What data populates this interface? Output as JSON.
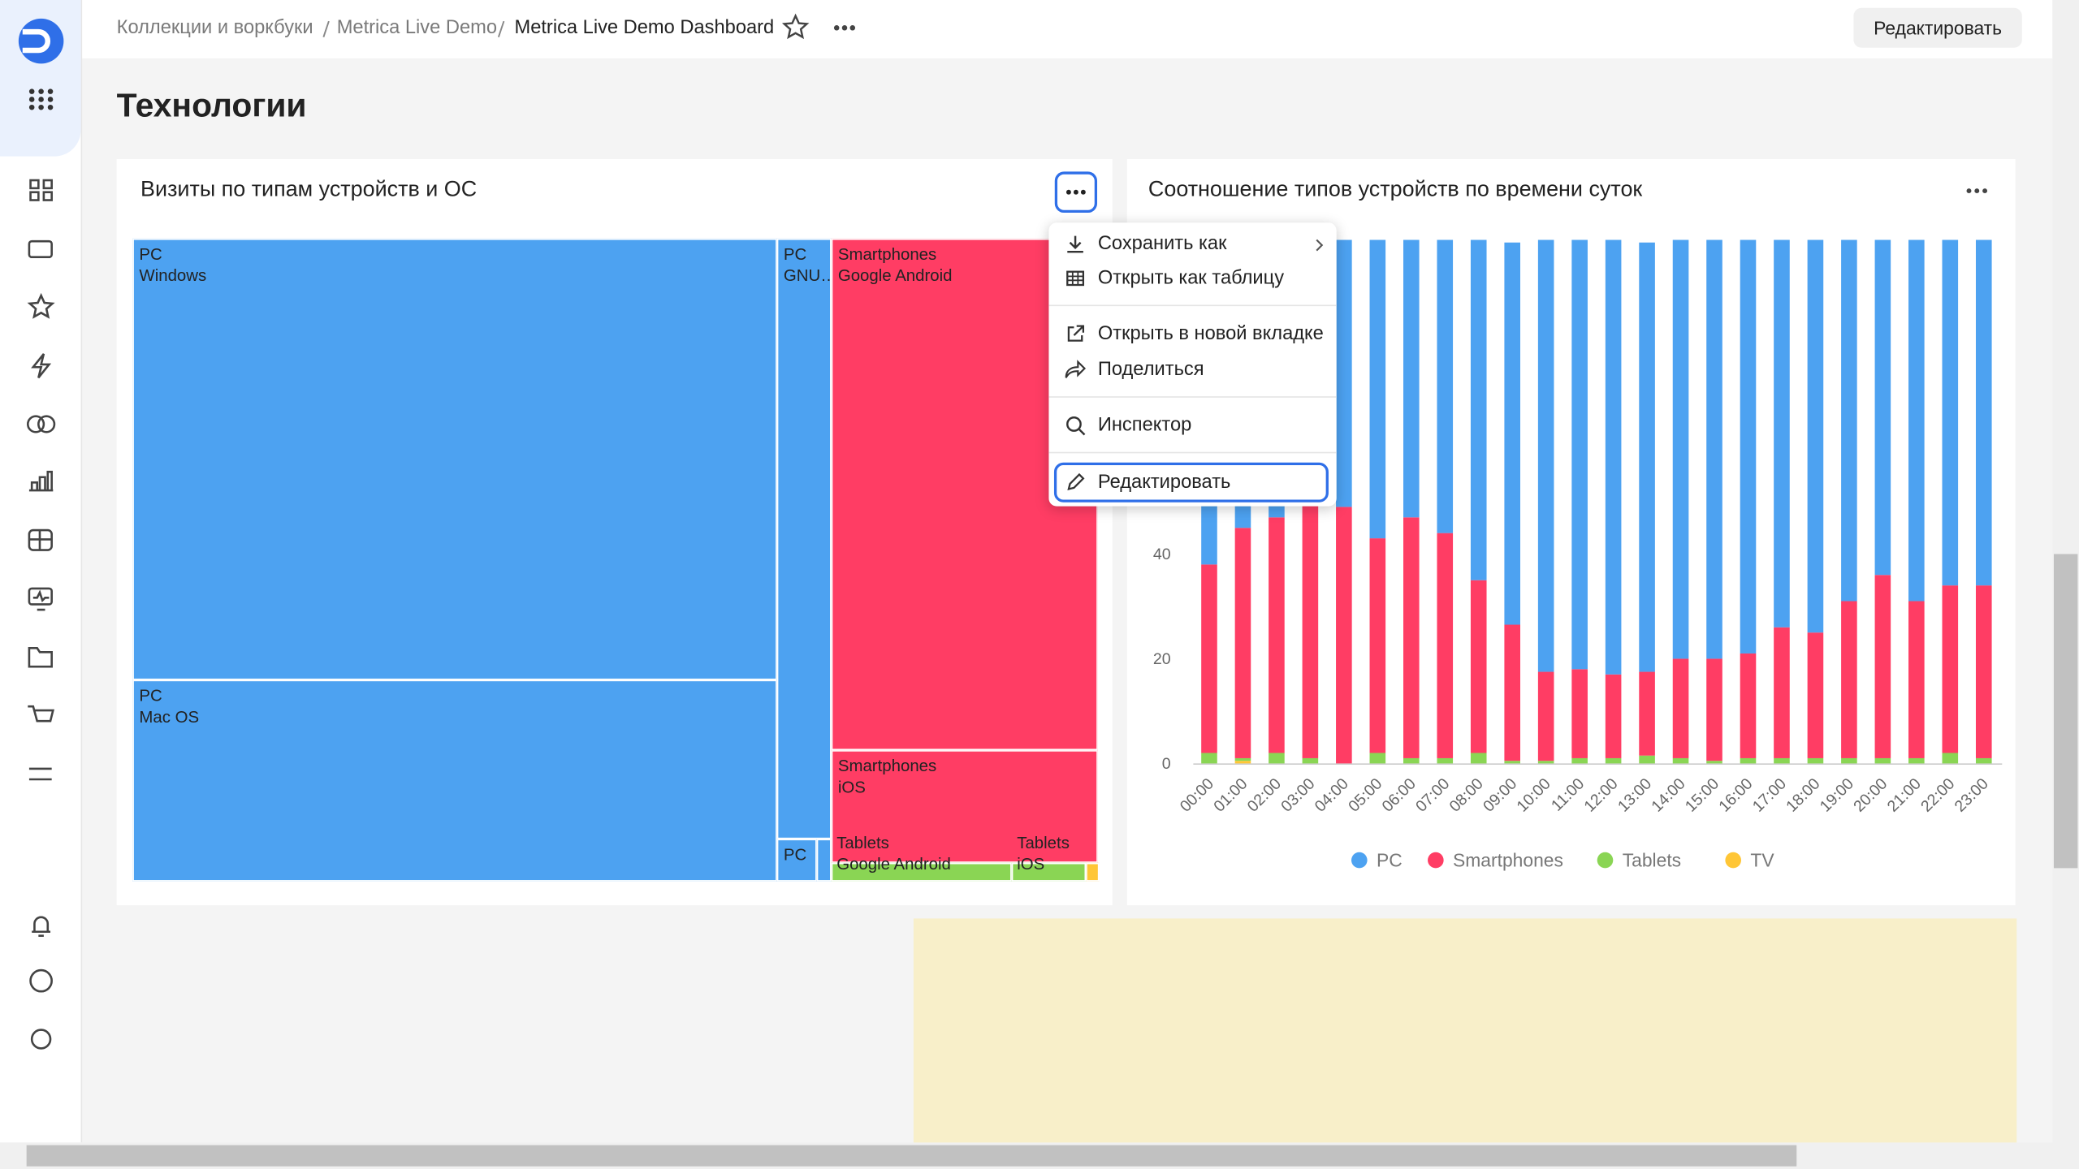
{
  "header": {
    "breadcrumbs": [
      "Коллекции и воркбуки",
      "Metrica Live Demo",
      "Metrica Live Demo Dashboard"
    ],
    "edit_button": "Редактировать"
  },
  "section_title": "Технологии",
  "treemap_widget": {
    "title": "Визиты по типам устройств и ОС",
    "nodes": [
      {
        "group": "PC",
        "name": "Windows"
      },
      {
        "group": "PC",
        "name": "Mac OS"
      },
      {
        "group": "PC",
        "name": "GNU…"
      },
      {
        "group": "PC"
      },
      {
        "group": "Smartphones",
        "name": "Google Android"
      },
      {
        "group": "Smartphones",
        "name": "iOS"
      },
      {
        "group": "Tablets",
        "name": "Google Android"
      },
      {
        "group": "Tablets",
        "name": "iOS"
      }
    ]
  },
  "menu": {
    "items": [
      "Сохранить как",
      "Открыть как таблицу",
      "Открыть в новой вкладке",
      "Поделиться",
      "Инспектор",
      "Редактировать"
    ]
  },
  "chart_data": {
    "type": "stacked_bar",
    "title": "Соотношение типов устройств по времени суток",
    "categories": [
      "00:00",
      "01:00",
      "02:00",
      "03:00",
      "04:00",
      "05:00",
      "06:00",
      "07:00",
      "08:00",
      "09:00",
      "10:00",
      "11:00",
      "12:00",
      "13:00",
      "14:00",
      "15:00",
      "16:00",
      "17:00",
      "18:00",
      "19:00",
      "20:00",
      "21:00",
      "22:00",
      "23:00"
    ],
    "series": [
      {
        "name": "PC",
        "color": "#4da2f1",
        "values": [
          62,
          55,
          53,
          50,
          51,
          57,
          53,
          56,
          65,
          73,
          82.5,
          82,
          83,
          82,
          80,
          80,
          79,
          74,
          75,
          69,
          64,
          69,
          66,
          66
        ]
      },
      {
        "name": "Smartphones",
        "color": "#ff3d64",
        "values": [
          36,
          44,
          45,
          49,
          49,
          41,
          46,
          43,
          33,
          26,
          17,
          17,
          16,
          16,
          19,
          19.5,
          20,
          25,
          24,
          30,
          35,
          30,
          32,
          33
        ]
      },
      {
        "name": "Tablets",
        "color": "#8ad554",
        "values": [
          2,
          0.5,
          2,
          1,
          0,
          2,
          1,
          1,
          2,
          0.5,
          0.5,
          1,
          1,
          1.5,
          1,
          0.5,
          1,
          1,
          1,
          1,
          1,
          1,
          2,
          1
        ]
      },
      {
        "name": "TV",
        "color": "#ffc636",
        "values": [
          0,
          0.5,
          0,
          0,
          0,
          0,
          0,
          0,
          0,
          0,
          0,
          0,
          0,
          0,
          0,
          0,
          0,
          0,
          0,
          0,
          0,
          0,
          0,
          0
        ]
      }
    ],
    "ylim": [
      0,
      100
    ],
    "yticks": [
      0,
      20,
      40
    ],
    "grid": false,
    "legend": "bottom"
  }
}
